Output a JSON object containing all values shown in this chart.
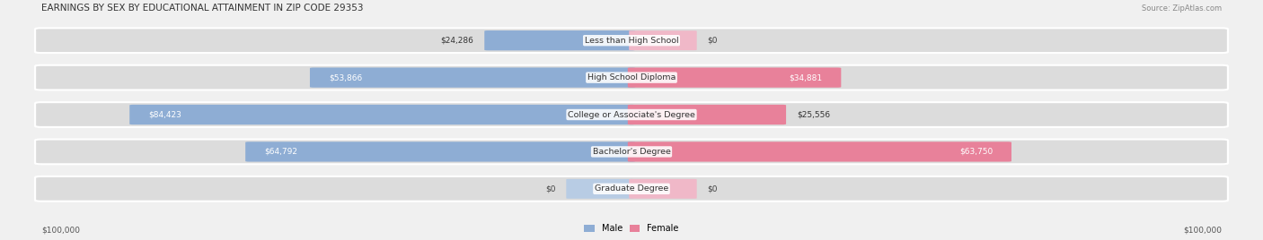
{
  "title": "EARNINGS BY SEX BY EDUCATIONAL ATTAINMENT IN ZIP CODE 29353",
  "source": "Source: ZipAtlas.com",
  "categories": [
    "Less than High School",
    "High School Diploma",
    "College or Associate's Degree",
    "Bachelor's Degree",
    "Graduate Degree"
  ],
  "male_values": [
    24286,
    53866,
    84423,
    64792,
    0
  ],
  "female_values": [
    0,
    34881,
    25556,
    63750,
    0
  ],
  "male_color": "#8eadd4",
  "female_color": "#e8819a",
  "male_color_light": "#b8cce4",
  "female_color_light": "#f0b8c8",
  "max_value": 100000,
  "bg_color": "#f0f0f0",
  "axis_label_left": "$100,000",
  "axis_label_right": "$100,000"
}
